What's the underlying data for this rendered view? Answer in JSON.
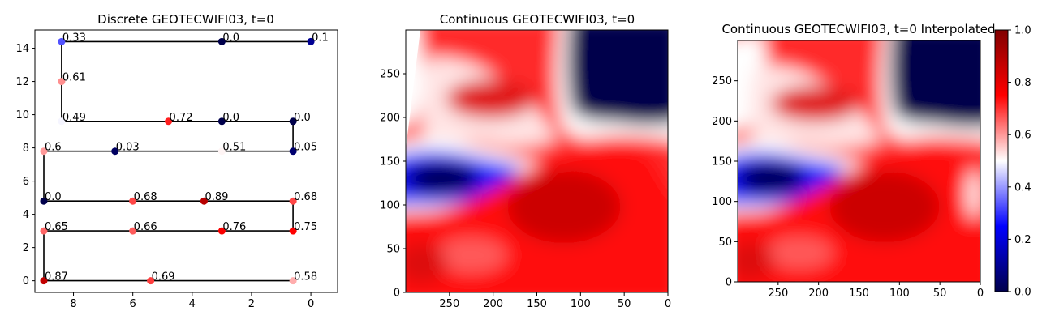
{
  "chart_data": [
    {
      "type": "scatter",
      "title": "Discrete GEOTECWIFI03, t=0",
      "xlim": [
        9.3,
        -0.9
      ],
      "ylim": [
        -0.7,
        15.1
      ],
      "x_ticks": [
        8,
        6,
        4,
        2,
        0
      ],
      "y_ticks": [
        0,
        2,
        4,
        6,
        8,
        10,
        12,
        14
      ],
      "colormap": "seismic",
      "path": [
        [
          0.0,
          14.4
        ],
        [
          8.4,
          14.4
        ],
        [
          8.4,
          9.6
        ],
        [
          0.6,
          9.6
        ],
        [
          0.6,
          7.8
        ],
        [
          9.0,
          7.8
        ],
        [
          9.0,
          4.8
        ],
        [
          0.6,
          4.8
        ],
        [
          0.6,
          3.0
        ],
        [
          9.0,
          3.0
        ],
        [
          9.0,
          0.0
        ],
        [
          0.6,
          0.0
        ]
      ],
      "points": [
        {
          "x": 8.4,
          "y": 14.4,
          "value": 0.33,
          "label": "0.33"
        },
        {
          "x": 3.0,
          "y": 14.4,
          "value": 0.0,
          "label": "0.0"
        },
        {
          "x": 0.0,
          "y": 14.4,
          "value": 0.1,
          "label": "0.1"
        },
        {
          "x": 8.4,
          "y": 12.0,
          "value": 0.61,
          "label": "0.61"
        },
        {
          "x": 8.4,
          "y": 9.6,
          "value": 0.49,
          "label": "0.49"
        },
        {
          "x": 4.8,
          "y": 9.6,
          "value": 0.72,
          "label": "0.72"
        },
        {
          "x": 3.0,
          "y": 9.6,
          "value": 0.0,
          "label": "0.0"
        },
        {
          "x": 0.6,
          "y": 9.6,
          "value": 0.0,
          "label": "0.0"
        },
        {
          "x": 9.0,
          "y": 7.8,
          "value": 0.6,
          "label": "0.6"
        },
        {
          "x": 6.6,
          "y": 7.8,
          "value": 0.03,
          "label": "0.03"
        },
        {
          "x": 3.0,
          "y": 7.8,
          "value": 0.51,
          "label": "0.51"
        },
        {
          "x": 0.6,
          "y": 7.8,
          "value": 0.05,
          "label": "0.05"
        },
        {
          "x": 9.0,
          "y": 4.8,
          "value": 0.0,
          "label": "0.0"
        },
        {
          "x": 6.0,
          "y": 4.8,
          "value": 0.68,
          "label": "0.68"
        },
        {
          "x": 3.6,
          "y": 4.8,
          "value": 0.89,
          "label": "0.89"
        },
        {
          "x": 0.6,
          "y": 4.8,
          "value": 0.68,
          "label": "0.68"
        },
        {
          "x": 9.0,
          "y": 3.0,
          "value": 0.65,
          "label": "0.65"
        },
        {
          "x": 6.0,
          "y": 3.0,
          "value": 0.66,
          "label": "0.66"
        },
        {
          "x": 3.0,
          "y": 3.0,
          "value": 0.76,
          "label": "0.76"
        },
        {
          "x": 0.6,
          "y": 3.0,
          "value": 0.75,
          "label": "0.75"
        },
        {
          "x": 9.0,
          "y": 0.0,
          "value": 0.87,
          "label": "0.87"
        },
        {
          "x": 5.4,
          "y": 0.0,
          "value": 0.69,
          "label": "0.69"
        },
        {
          "x": 0.6,
          "y": 0.0,
          "value": 0.58,
          "label": "0.58"
        }
      ]
    },
    {
      "type": "heatmap",
      "title": "Continuous GEOTECWIFI03, t=0",
      "xlim": [
        300,
        0
      ],
      "ylim": [
        0,
        300
      ],
      "x_ticks": [
        250,
        200,
        150,
        100,
        50,
        0
      ],
      "y_ticks": [
        0,
        50,
        100,
        150,
        200,
        250
      ],
      "colormap": "seismic"
    },
    {
      "type": "heatmap",
      "title": "Continuous GEOTECWIFI03, t=0 Interpolated",
      "xlim": [
        300,
        0
      ],
      "ylim": [
        0,
        300
      ],
      "x_ticks": [
        250,
        200,
        150,
        100,
        50,
        0
      ],
      "y_ticks": [
        0,
        50,
        100,
        150,
        200,
        250
      ],
      "colormap": "seismic",
      "colorbar": {
        "min": 0.0,
        "max": 1.0,
        "ticks": [
          "0.0",
          "0.2",
          "0.4",
          "0.6",
          "0.8",
          "1.0"
        ]
      }
    }
  ]
}
